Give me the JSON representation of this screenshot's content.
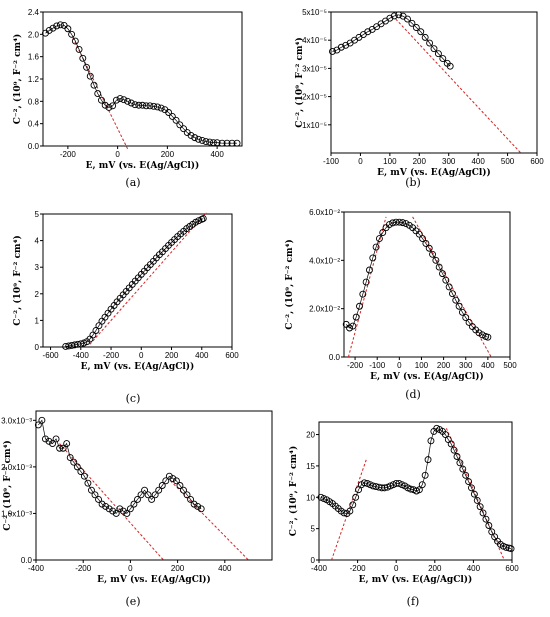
{
  "chart_data": [
    {
      "panel": "(a)",
      "type": "scatter",
      "xlabel": "E, mV (vs. E(Ag/AgCl))",
      "ylabel": "C⁻², (10⁹, F⁻² cm⁴)",
      "xlim": [
        -300,
        500
      ],
      "ylim": [
        0,
        2.4
      ],
      "xticks": [
        "-200",
        "0",
        "200",
        "400"
      ],
      "yticks": [
        "0.0",
        "0.4",
        "0.8",
        "1.2",
        "1.6",
        "2.0",
        "2.4"
      ],
      "series": [
        {
          "x": [
            -290,
            -275,
            -260,
            -245,
            -230,
            -215,
            -200,
            -185,
            -170,
            -155,
            -140,
            -125,
            -110,
            -95,
            -80,
            -65,
            -50,
            -35,
            -20,
            -5,
            10,
            25,
            40,
            55,
            70,
            85,
            100,
            115,
            130,
            145,
            160,
            175,
            190,
            205,
            220,
            235,
            250,
            265,
            280,
            295,
            310,
            325,
            340,
            355,
            370,
            385,
            400,
            420,
            440,
            460,
            480
          ],
          "y": [
            2.02,
            2.07,
            2.11,
            2.15,
            2.17,
            2.16,
            2.1,
            2.0,
            1.88,
            1.73,
            1.57,
            1.41,
            1.25,
            1.09,
            0.94,
            0.82,
            0.73,
            0.69,
            0.72,
            0.82,
            0.85,
            0.83,
            0.8,
            0.77,
            0.74,
            0.73,
            0.73,
            0.72,
            0.72,
            0.71,
            0.7,
            0.68,
            0.65,
            0.6,
            0.53,
            0.46,
            0.38,
            0.31,
            0.24,
            0.19,
            0.15,
            0.12,
            0.1,
            0.08,
            0.07,
            0.06,
            0.06,
            0.05,
            0.05,
            0.05,
            0.05
          ]
        }
      ],
      "fit_lines": [
        {
          "x": [
            -180,
            40
          ],
          "y": [
            1.94,
            -0.05
          ]
        }
      ]
    },
    {
      "panel": "(b)",
      "type": "scatter",
      "xlabel": "E, mV (vs. E(Ag/AgCl))",
      "ylabel": "C⁻², (10⁹, F⁻² cm⁴)",
      "xlim": [
        -100,
        600
      ],
      "ylim": [
        0,
        5e-05
      ],
      "xticks": [
        "-100",
        "0",
        "100",
        "200",
        "300",
        "400",
        "500",
        "600"
      ],
      "yticks": [
        "1x10⁻⁵",
        "2x10⁻⁵",
        "3x10⁻⁵",
        "4x10⁻⁵",
        "5x10⁻⁵"
      ],
      "series": [
        {
          "x": [
            -95,
            -80,
            -65,
            -50,
            -35,
            -20,
            -5,
            10,
            25,
            40,
            55,
            70,
            85,
            100,
            115,
            130,
            145,
            160,
            175,
            190,
            205,
            220,
            235,
            250,
            265,
            280,
            295,
            305
          ],
          "y": [
            3.6e-05,
            3.65e-05,
            3.75e-05,
            3.82e-05,
            3.9e-05,
            4e-05,
            4.1e-05,
            4.2e-05,
            4.3e-05,
            4.38e-05,
            4.48e-05,
            4.58e-05,
            4.68e-05,
            4.78e-05,
            4.86e-05,
            4.9e-05,
            4.85e-05,
            4.75e-05,
            4.6e-05,
            4.45e-05,
            4.3e-05,
            4.1e-05,
            3.9e-05,
            3.7e-05,
            3.52e-05,
            3.35e-05,
            3.18e-05,
            3.08e-05
          ]
        }
      ],
      "fit_lines": [
        {
          "x": [
            120,
            545
          ],
          "y": [
            4.75e-05,
            0
          ]
        }
      ]
    },
    {
      "panel": "(c)",
      "type": "scatter",
      "xlabel": "E, mV (vs. E(Ag/AgCl))",
      "ylabel": "C⁻², (10⁹, F⁻² cm⁴)",
      "xlim": [
        -650,
        600
      ],
      "ylim": [
        0,
        5
      ],
      "xticks": [
        "-600",
        "-400",
        "-200",
        "0",
        "200",
        "400",
        "600"
      ],
      "yticks": [
        "0",
        "1",
        "2",
        "3",
        "4",
        "5"
      ],
      "series": [
        {
          "x": [
            -500,
            -480,
            -460,
            -440,
            -420,
            -400,
            -380,
            -360,
            -340,
            -320,
            -300,
            -280,
            -260,
            -240,
            -220,
            -200,
            -180,
            -160,
            -140,
            -120,
            -100,
            -80,
            -60,
            -40,
            -20,
            0,
            20,
            40,
            60,
            80,
            100,
            120,
            140,
            160,
            180,
            200,
            220,
            240,
            260,
            280,
            300,
            320,
            340,
            360,
            380,
            400,
            410
          ],
          "y": [
            0.02,
            0.04,
            0.06,
            0.08,
            0.1,
            0.12,
            0.15,
            0.2,
            0.3,
            0.45,
            0.62,
            0.8,
            0.97,
            1.12,
            1.27,
            1.42,
            1.56,
            1.7,
            1.83,
            1.96,
            2.09,
            2.22,
            2.35,
            2.48,
            2.6,
            2.73,
            2.85,
            2.98,
            3.1,
            3.22,
            3.35,
            3.47,
            3.58,
            3.7,
            3.82,
            3.93,
            4.04,
            4.15,
            4.25,
            4.35,
            4.45,
            4.53,
            4.61,
            4.69,
            4.75,
            4.8,
            4.83
          ]
        }
      ],
      "fit_lines": [
        {
          "x": [
            -340,
            430
          ],
          "y": [
            0.1,
            5.05
          ]
        }
      ]
    },
    {
      "panel": "(d)",
      "type": "scatter",
      "xlabel": "E, mV (vs. E(Ag/AgCl))",
      "ylabel": "C⁻², (10⁹, F⁻² cm⁴)",
      "xlim": [
        -250,
        500
      ],
      "ylim": [
        0,
        0.06
      ],
      "xticks": [
        "-200",
        "-100",
        "0",
        "100",
        "200",
        "300",
        "400",
        "500"
      ],
      "yticks": [
        "0.0",
        "2.0x10⁻²",
        "4.0x10⁻²",
        "6.0x10⁻²"
      ],
      "series": [
        {
          "x": [
            -240,
            -225,
            -210,
            -195,
            -180,
            -165,
            -150,
            -135,
            -120,
            -105,
            -90,
            -75,
            -60,
            -45,
            -30,
            -15,
            0,
            15,
            30,
            45,
            60,
            75,
            90,
            105,
            120,
            135,
            150,
            165,
            180,
            195,
            210,
            225,
            240,
            255,
            270,
            285,
            300,
            315,
            330,
            345,
            360,
            375,
            390,
            400
          ],
          "y": [
            0.0135,
            0.012,
            0.0128,
            0.0165,
            0.021,
            0.026,
            0.031,
            0.036,
            0.041,
            0.0455,
            0.049,
            0.0515,
            0.0535,
            0.0548,
            0.0555,
            0.0558,
            0.0558,
            0.0556,
            0.0552,
            0.0545,
            0.0535,
            0.0522,
            0.0508,
            0.049,
            0.047,
            0.045,
            0.0425,
            0.04,
            0.0372,
            0.0345,
            0.0318,
            0.029,
            0.0262,
            0.0235,
            0.021,
            0.0185,
            0.0163,
            0.0143,
            0.0126,
            0.0112,
            0.01,
            0.0092,
            0.0085,
            0.0082
          ]
        }
      ],
      "fit_lines": [
        {
          "x": [
            -230,
            -60
          ],
          "y": [
            0.0,
            0.058
          ]
        },
        {
          "x": [
            60,
            415
          ],
          "y": [
            0.058,
            0.0
          ]
        }
      ]
    },
    {
      "panel": "(e)",
      "type": "scatter",
      "xlabel": "E, mV (vs. E(Ag/AgCl))",
      "ylabel": "C⁻², (10⁹, F⁻² cm⁴)",
      "xlim": [
        -400,
        600
      ],
      "ylim": [
        0,
        0.0032
      ],
      "xticks": [
        "-400",
        "-200",
        "0",
        "200",
        "400"
      ],
      "yticks": [
        "0.0",
        "1.0x10⁻³",
        "2.0x10⁻³",
        "3.0x10⁻³"
      ],
      "series": [
        {
          "x": [
            -390,
            -375,
            -360,
            -345,
            -330,
            -315,
            -300,
            -285,
            -270,
            -255,
            -240,
            -225,
            -210,
            -195,
            -180,
            -165,
            -150,
            -135,
            -120,
            -105,
            -90,
            -75,
            -60,
            -45,
            -30,
            -15,
            0,
            15,
            30,
            45,
            60,
            75,
            90,
            105,
            120,
            135,
            150,
            165,
            180,
            195,
            210,
            225,
            240,
            255,
            270,
            285,
            300
          ],
          "y": [
            0.0029,
            0.003,
            0.0026,
            0.00255,
            0.0025,
            0.0026,
            0.0024,
            0.0024,
            0.0025,
            0.0022,
            0.0021,
            0.002,
            0.0019,
            0.0018,
            0.00165,
            0.0015,
            0.0014,
            0.0013,
            0.0012,
            0.00115,
            0.0011,
            0.00105,
            0.001,
            0.0011,
            0.00105,
            0.001,
            0.0011,
            0.0012,
            0.0013,
            0.0014,
            0.0015,
            0.0014,
            0.0013,
            0.0014,
            0.0015,
            0.0016,
            0.0017,
            0.0018,
            0.00175,
            0.0017,
            0.0016,
            0.0015,
            0.0014,
            0.0013,
            0.0012,
            0.00115,
            0.0011
          ]
        }
      ],
      "fit_lines": [
        {
          "x": [
            -300,
            140
          ],
          "y": [
            0.0025,
            0.0
          ]
        },
        {
          "x": [
            170,
            500
          ],
          "y": [
            0.0017,
            0.0
          ]
        }
      ]
    },
    {
      "panel": "(f)",
      "type": "scatter",
      "xlabel": "E, mV (vs. E(Ag/AgCl))",
      "ylabel": "C⁻², (10⁹, F⁻² cm⁴)",
      "xlim": [
        -400,
        600
      ],
      "ylim": [
        0,
        22
      ],
      "xticks": [
        "-400",
        "-200",
        "0",
        "200",
        "400",
        "600"
      ],
      "yticks": [
        "0",
        "5",
        "10",
        "15",
        "20"
      ],
      "series": [
        {
          "x": [
            -390,
            -375,
            -360,
            -345,
            -330,
            -315,
            -300,
            -285,
            -270,
            -255,
            -240,
            -225,
            -210,
            -195,
            -180,
            -165,
            -150,
            -135,
            -120,
            -105,
            -90,
            -75,
            -60,
            -45,
            -30,
            -15,
            0,
            15,
            30,
            45,
            60,
            75,
            90,
            105,
            120,
            135,
            150,
            165,
            180,
            195,
            210,
            225,
            240,
            255,
            270,
            285,
            300,
            315,
            330,
            345,
            360,
            375,
            390,
            405,
            420,
            435,
            450,
            465,
            480,
            495,
            510,
            525,
            540,
            555,
            570,
            585,
            595
          ],
          "y": [
            10,
            9.8,
            9.6,
            9.3,
            9.0,
            8.6,
            8.2,
            7.8,
            7.5,
            7.4,
            7.8,
            8.8,
            10,
            11.2,
            12,
            12.3,
            12.2,
            12,
            11.8,
            11.7,
            11.6,
            11.5,
            11.5,
            11.6,
            11.8,
            12,
            12.2,
            12.2,
            12,
            11.8,
            11.5,
            11.3,
            11.2,
            11,
            11.2,
            12,
            13.5,
            16,
            19,
            20.5,
            21,
            20.8,
            20.5,
            20,
            19.2,
            18.5,
            17.5,
            16.5,
            15.5,
            14.5,
            13.5,
            12.5,
            11.5,
            10.5,
            9.5,
            8.5,
            7.5,
            6.5,
            5.5,
            4.5,
            3.7,
            3.0,
            2.5,
            2.2,
            2.0,
            1.9,
            1.8
          ]
        }
      ],
      "fit_lines": [
        {
          "x": [
            -335,
            -155
          ],
          "y": [
            0,
            16
          ]
        },
        {
          "x": [
            260,
            560
          ],
          "y": [
            21,
            0
          ]
        }
      ]
    }
  ],
  "captions": [
    "(a)",
    "(b)",
    "(c)",
    "(d)",
    "(e)",
    "(f)"
  ]
}
